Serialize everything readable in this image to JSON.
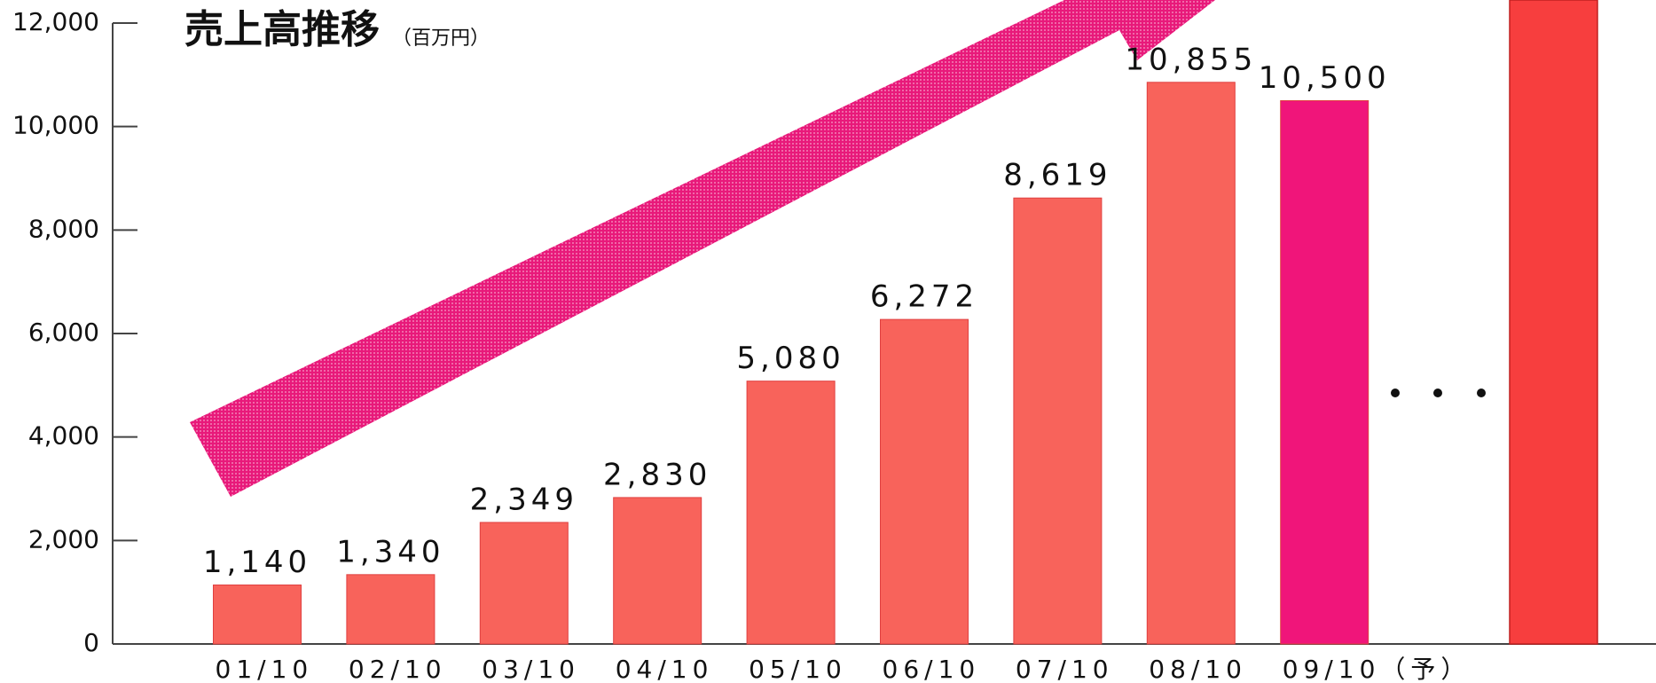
{
  "chart_data": {
    "type": "bar",
    "title": "売上高推移",
    "subtitle": "（百万円）",
    "categories": [
      "01/10",
      "02/10",
      "03/10",
      "04/10",
      "05/10",
      "06/10",
      "07/10",
      "08/10",
      "09/10（予）"
    ],
    "values": [
      1140,
      1340,
      2349,
      2830,
      5080,
      6272,
      8619,
      10855,
      10500
    ],
    "value_labels": [
      "1,140",
      "1,340",
      "2,349",
      "2,830",
      "5,080",
      "6,272",
      "8,619",
      "10,855",
      "10,500"
    ],
    "colors": [
      "#f8635b",
      "#f8635b",
      "#f8635b",
      "#f8635b",
      "#f8635b",
      "#f8635b",
      "#f8635b",
      "#f8635b",
      "#f0157a"
    ],
    "ylim": [
      0,
      12000
    ],
    "yticks": [
      {
        "value": 0,
        "label": "0"
      },
      {
        "value": 2000,
        "label": "2,000"
      },
      {
        "value": 4000,
        "label": "4,000"
      },
      {
        "value": 6000,
        "label": "6,000"
      },
      {
        "value": 8000,
        "label": "8,000"
      },
      {
        "value": 10000,
        "label": "10,000"
      },
      {
        "value": 12000,
        "label": "12,000"
      }
    ],
    "grid": false
  }
}
